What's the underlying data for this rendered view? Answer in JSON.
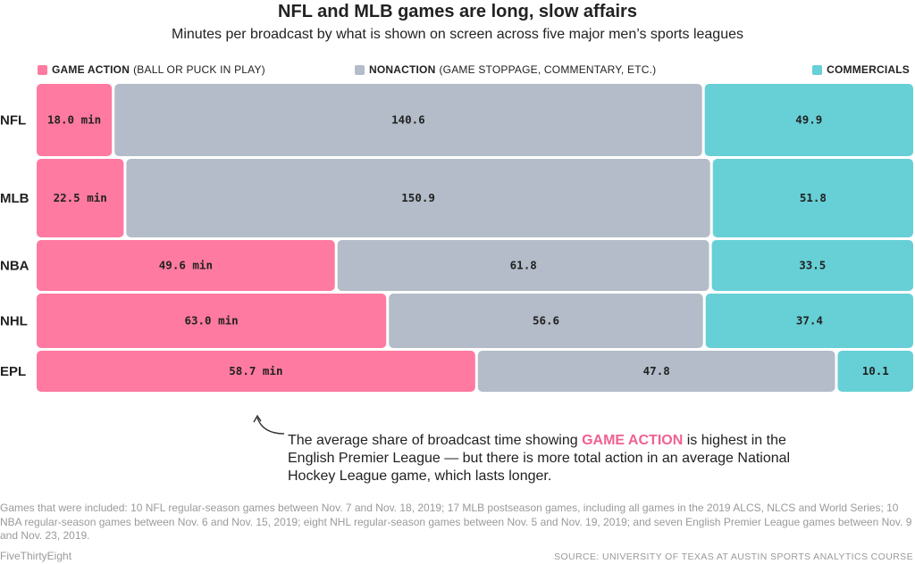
{
  "title": "NFL and MLB games are long, slow affairs",
  "subtitle": "Minutes per broadcast by what is shown on screen across five major men’s sports leagues",
  "legend": {
    "action_bold": "GAME ACTION",
    "action_rest": "(BALL OR PUCK IN PLAY)",
    "nonaction_bold": "NONACTION",
    "nonaction_rest": "(GAME STOPPAGE, COMMENTARY, ETC.)",
    "commercials_bold": "COMMERCIALS"
  },
  "colors": {
    "action": "#ff7aa0",
    "nonaction": "#b3bcc8",
    "commercials": "#66d0d6",
    "highlight": "#f0618f"
  },
  "chart_data": {
    "type": "bar",
    "orientation": "horizontal-stacked",
    "categories": [
      "NFL",
      "MLB",
      "NBA",
      "NHL",
      "EPL"
    ],
    "series": [
      {
        "name": "GAME ACTION",
        "values": [
          18.0,
          22.5,
          49.6,
          63.0,
          58.7
        ],
        "labels": [
          "18.0 min",
          "22.5 min",
          "49.6 min",
          "63.0 min",
          "58.7 min"
        ]
      },
      {
        "name": "NONACTION",
        "values": [
          140.6,
          150.9,
          61.8,
          56.6,
          47.8
        ],
        "labels": [
          "140.6",
          "150.9",
          "61.8",
          "56.6",
          "47.8"
        ]
      },
      {
        "name": "COMMERCIALS",
        "values": [
          49.9,
          51.8,
          33.5,
          37.4,
          10.1
        ],
        "labels": [
          "49.9",
          "51.8",
          "33.5",
          "37.4",
          "10.1"
        ]
      }
    ],
    "stacking": "each row normalized to full width",
    "legend_position": "top"
  },
  "annotation": {
    "before": "The average share of broadcast time showing ",
    "highlight": "GAME ACTION",
    "after": " is highest in the English Premier League — but there is more total action in an average National Hockey League game, which lasts longer."
  },
  "footnote": "Games that were included: 10 NFL regular-season games between Nov. 7 and Nov. 18, 2019; 17 MLB postseason games, including all games in the 2019 ALCS, NLCS and World Series; 10 NBA regular-season games between Nov. 6 and Nov. 15, 2019; eight NHL regular-season games between Nov. 5 and Nov. 19, 2019; and seven English Premier League games between Nov. 9 and Nov. 23, 2019.",
  "brand": "FiveThirtyEight",
  "source": "SOURCE: UNIVERSITY OF TEXAS AT AUSTIN SPORTS ANALYTICS COURSE"
}
